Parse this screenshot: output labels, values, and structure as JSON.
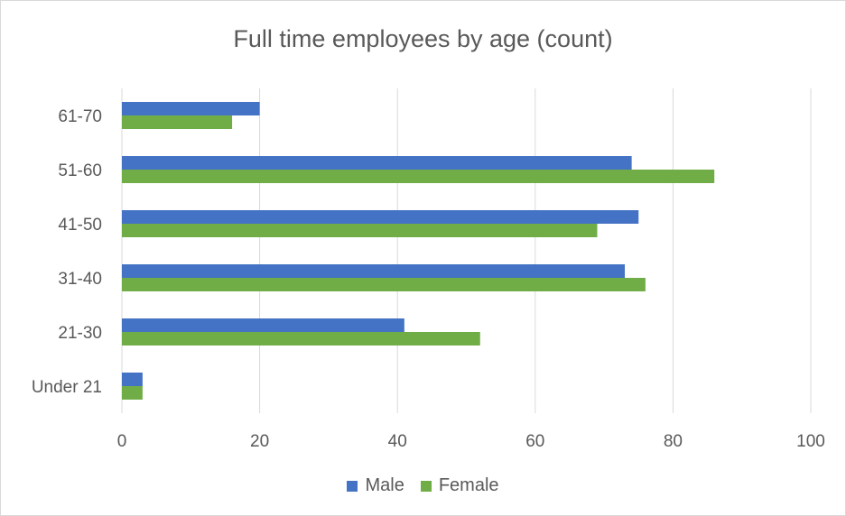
{
  "chart_data": {
    "type": "bar",
    "orientation": "horizontal",
    "title": "Full time employees by age (count)",
    "categories": [
      "Under 21",
      "21-30",
      "31-40",
      "41-50",
      "51-60",
      "61-70"
    ],
    "series": [
      {
        "name": "Male",
        "color": "#4472c4",
        "values": [
          3,
          41,
          73,
          75,
          74,
          20
        ]
      },
      {
        "name": "Female",
        "color": "#70ad47",
        "values": [
          3,
          52,
          76,
          69,
          86,
          16
        ]
      }
    ],
    "xlim": [
      0,
      100
    ],
    "xticks": [
      "0",
      "20",
      "40",
      "60",
      "80",
      "100"
    ],
    "grid": true,
    "legend_position": "bottom"
  }
}
